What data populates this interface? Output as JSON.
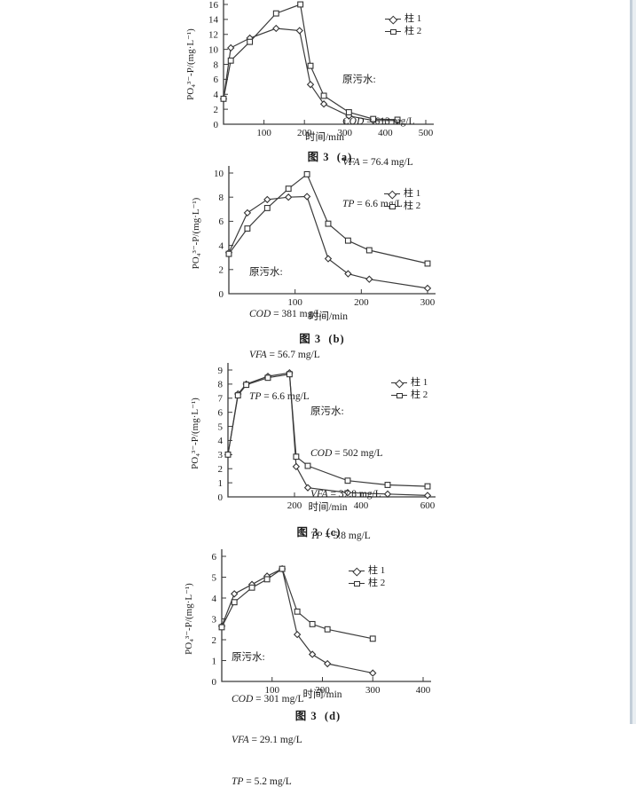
{
  "page": {
    "background": "#ffffff",
    "edge_line_color": "#c3ced9",
    "line_color": "#3b3b3b",
    "text_color": "#1b1b1b"
  },
  "chart_data": [
    {
      "type": "line",
      "caption": "图 3  (a)",
      "xlabel": "时间/min",
      "ylabel": "PO₄³⁻-P/(mg·L⁻¹)",
      "xlim": [
        0,
        500
      ],
      "xticks": [
        100,
        200,
        300,
        400,
        500
      ],
      "ylim": [
        0,
        16
      ],
      "yticks": [
        0,
        2,
        4,
        6,
        8,
        10,
        12,
        14,
        16
      ],
      "grid": false,
      "legend_position": "upper-right",
      "annotation": {
        "title": "原污水:",
        "lines": [
          {
            "label": "COD",
            "rest": " = 613 mg/L"
          },
          {
            "label": "VFA",
            "rest": " = 76.4 mg/L"
          },
          {
            "label": "TP",
            "rest": " = 6.6 mg/L"
          }
        ]
      },
      "series": [
        {
          "name": "柱 1",
          "marker": "diamond",
          "x": [
            0,
            18,
            65,
            130,
            188,
            215,
            248,
            310,
            370,
            430
          ],
          "y": [
            3.4,
            10.2,
            11.5,
            12.8,
            12.5,
            5.3,
            2.7,
            1.1,
            0.5,
            0.5
          ]
        },
        {
          "name": "柱 2",
          "marker": "square",
          "x": [
            0,
            18,
            65,
            130,
            190,
            215,
            248,
            310,
            370,
            430
          ],
          "y": [
            3.4,
            8.5,
            11.0,
            14.8,
            16.0,
            7.8,
            3.8,
            1.6,
            0.7,
            0.6
          ]
        }
      ]
    },
    {
      "type": "line",
      "caption": "图 3  (b)",
      "xlabel": "时间/min",
      "ylabel": "PO₄³⁻-P/(mg·L⁻¹)",
      "xlim": [
        0,
        300
      ],
      "xticks": [
        100,
        200,
        300
      ],
      "ylim": [
        0,
        10
      ],
      "yticks": [
        0,
        2,
        4,
        6,
        8,
        10
      ],
      "grid": false,
      "legend_position": "upper-right",
      "annotation": {
        "title": "原污水:",
        "lines": [
          {
            "label": "COD",
            "rest": " = 381 mg/L"
          },
          {
            "label": "VFA",
            "rest": " = 56.7 mg/L"
          },
          {
            "label": "TP",
            "rest": " = 6.6 mg/L"
          }
        ]
      },
      "series": [
        {
          "name": "柱 1",
          "marker": "diamond",
          "x": [
            0,
            28,
            58,
            90,
            118,
            150,
            180,
            212,
            300
          ],
          "y": [
            3.4,
            6.7,
            7.8,
            8.0,
            8.05,
            2.9,
            1.65,
            1.2,
            0.45
          ]
        },
        {
          "name": "柱 2",
          "marker": "square",
          "x": [
            0,
            28,
            58,
            90,
            118,
            150,
            180,
            212,
            300
          ],
          "y": [
            3.3,
            5.4,
            7.1,
            8.7,
            9.9,
            5.8,
            4.4,
            3.6,
            2.5
          ]
        }
      ]
    },
    {
      "type": "line",
      "caption": "图 3  (c)",
      "xlabel": "时间/min",
      "ylabel": "PO₄³⁻-P/(mg·L⁻¹)",
      "xlim": [
        0,
        600
      ],
      "xticks": [
        200,
        400,
        600
      ],
      "ylim": [
        0,
        9
      ],
      "yticks": [
        0,
        1,
        2,
        3,
        4,
        5,
        6,
        7,
        8,
        9
      ],
      "grid": false,
      "legend_position": "upper-right",
      "annotation": {
        "title": "原污水:",
        "lines": [
          {
            "label": "COD",
            "rest": " = 502 mg/L"
          },
          {
            "label": "VFA",
            "rest": " = 37.8 mg/L"
          },
          {
            "label": "TP",
            "rest": " = 5.8 mg/L"
          }
        ]
      },
      "series": [
        {
          "name": "柱 1",
          "marker": "diamond",
          "x": [
            0,
            30,
            55,
            120,
            185,
            205,
            240,
            360,
            480,
            600
          ],
          "y": [
            3.0,
            7.3,
            8.0,
            8.55,
            8.8,
            2.15,
            0.65,
            0.3,
            0.2,
            0.1
          ]
        },
        {
          "name": "柱 2",
          "marker": "square",
          "x": [
            0,
            30,
            55,
            120,
            185,
            205,
            240,
            360,
            480,
            600
          ],
          "y": [
            3.0,
            7.2,
            7.95,
            8.45,
            8.7,
            2.85,
            2.2,
            1.15,
            0.85,
            0.75
          ]
        }
      ]
    },
    {
      "type": "line",
      "caption": "图 3  (d)",
      "xlabel": "时间/min",
      "ylabel": "PO₄³⁻-P/(mg·L⁻¹)",
      "xlim": [
        0,
        400
      ],
      "xticks": [
        100,
        200,
        300,
        400
      ],
      "ylim": [
        0,
        6
      ],
      "yticks": [
        0,
        1,
        2,
        3,
        4,
        5,
        6
      ],
      "grid": false,
      "legend_position": "upper-right",
      "annotation": {
        "title": "原污水:",
        "lines": [
          {
            "label": "COD",
            "rest": " = 301 mg/L"
          },
          {
            "label": "VFA",
            "rest": " = 29.1 mg/L"
          },
          {
            "label": "TP",
            "rest": " = 5.2 mg/L"
          }
        ]
      },
      "series": [
        {
          "name": "柱 1",
          "marker": "diamond",
          "x": [
            0,
            25,
            60,
            90,
            120,
            150,
            180,
            210,
            300
          ],
          "y": [
            2.65,
            4.2,
            4.65,
            5.05,
            5.4,
            2.25,
            1.3,
            0.85,
            0.4
          ]
        },
        {
          "name": "柱 2",
          "marker": "square",
          "x": [
            0,
            25,
            60,
            90,
            120,
            150,
            180,
            210,
            300
          ],
          "y": [
            2.6,
            3.8,
            4.5,
            4.9,
            5.4,
            3.35,
            2.75,
            2.5,
            2.05
          ]
        }
      ]
    }
  ]
}
